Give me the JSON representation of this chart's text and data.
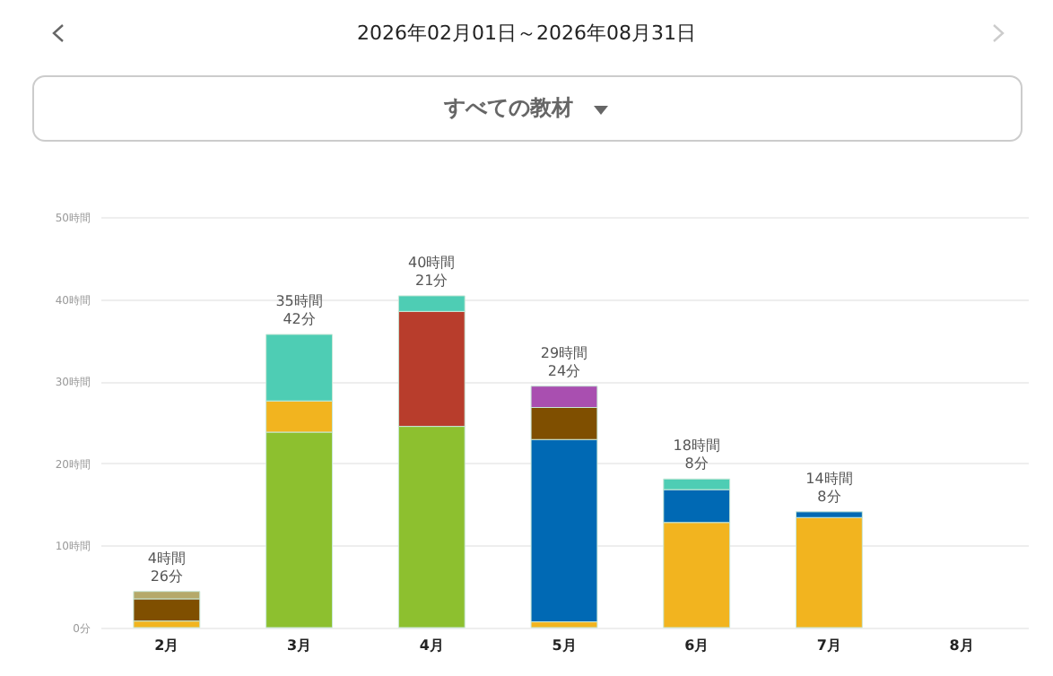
{
  "chart_data": {
    "type": "bar",
    "stacked": true,
    "title": "2026年02月01日～2026年08月31日",
    "subtitle": "すべての教材",
    "categories": [
      "2月",
      "3月",
      "4月",
      "5月",
      "6月",
      "7月",
      "8月"
    ],
    "series": [
      {
        "color": "#8dc02f",
        "values": [
          null,
          23.8,
          24.5,
          null,
          null,
          null,
          null
        ]
      },
      {
        "color": "#f2b41f",
        "values": [
          0.8,
          3.8,
          null,
          0.7,
          12.8,
          13.4,
          null
        ]
      },
      {
        "color": "#0069b4",
        "values": [
          null,
          null,
          null,
          22.2,
          4.0,
          0.7,
          null
        ]
      },
      {
        "color": "#b83d2c",
        "values": [
          null,
          null,
          14.0,
          null,
          null,
          null,
          null
        ]
      },
      {
        "color": "#7f4f00",
        "values": [
          2.7,
          null,
          null,
          3.9,
          null,
          null,
          null
        ]
      },
      {
        "color": "#4ecdb4",
        "values": [
          null,
          8.1,
          1.9,
          null,
          1.3,
          null,
          null
        ]
      },
      {
        "color": "#b5a96a",
        "values": [
          0.9,
          null,
          null,
          null,
          null,
          null,
          null
        ]
      },
      {
        "color": "#a94fb0",
        "values": [
          null,
          null,
          null,
          2.6,
          null,
          null,
          null
        ]
      }
    ],
    "totals": [
      "4時間\n26分",
      "35時間\n42分",
      "40時間\n21分",
      "29時間\n24分",
      "18時間\n8分",
      "14時間\n8分",
      null
    ],
    "ylim": [
      0,
      50
    ],
    "yticks": [
      {
        "value": 0,
        "label": "0分"
      },
      {
        "value": 10,
        "label": "10時間"
      },
      {
        "value": 20,
        "label": "20時間"
      },
      {
        "value": 30,
        "label": "30時間"
      },
      {
        "value": 40,
        "label": "40時間"
      },
      {
        "value": 50,
        "label": "50時間"
      }
    ],
    "grid": "y",
    "legend": false
  }
}
